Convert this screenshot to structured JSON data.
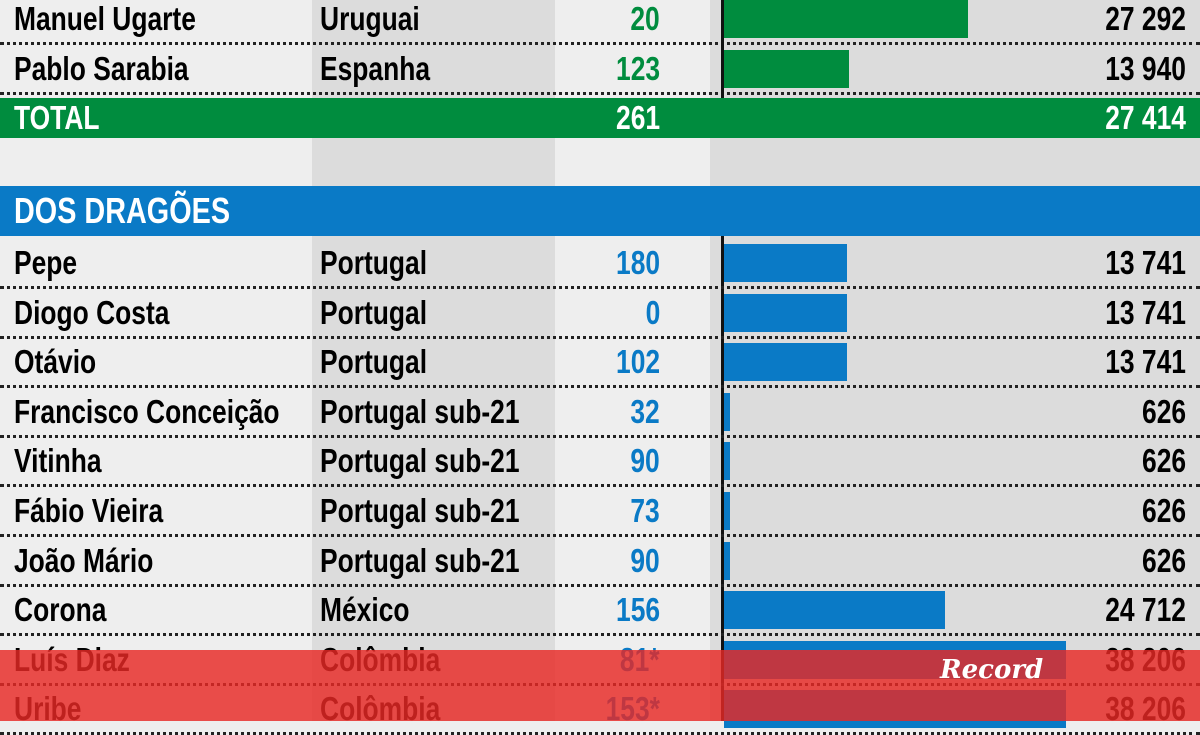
{
  "colors": {
    "green": "#008c3e",
    "blue": "#0a7ac6",
    "overlay": "#e82824"
  },
  "chart_data": {
    "type": "table",
    "max_value": 38206,
    "groups": [
      {
        "name": "",
        "color": "#008c3e",
        "rows": [
          {
            "name": "Manuel Ugarte",
            "country": "Uruguai",
            "games": "20",
            "value": 27292,
            "value_label": "27 292"
          },
          {
            "name": "Pablo Sarabia",
            "country": "Espanha",
            "games": "123",
            "value": 13940,
            "value_label": "13 940"
          }
        ],
        "total": {
          "label": "TOTAL",
          "games": "261",
          "value_label": "27 414"
        }
      },
      {
        "name": "DOS DRAGÕES",
        "color": "#0a7ac6",
        "rows": [
          {
            "name": "Pepe",
            "country": "Portugal",
            "games": "180",
            "value": 13741,
            "value_label": "13 741"
          },
          {
            "name": "Diogo Costa",
            "country": "Portugal",
            "games": "0",
            "value": 13741,
            "value_label": "13 741"
          },
          {
            "name": "Otávio",
            "country": "Portugal",
            "games": "102",
            "value": 13741,
            "value_label": "13 741"
          },
          {
            "name": "Francisco Conceição",
            "country": "Portugal sub-21",
            "games": "32",
            "value": 626,
            "value_label": "626"
          },
          {
            "name": "Vitinha",
            "country": "Portugal sub-21",
            "games": "90",
            "value": 626,
            "value_label": "626"
          },
          {
            "name": "Fábio Vieira",
            "country": "Portugal sub-21",
            "games": "73",
            "value": 626,
            "value_label": "626"
          },
          {
            "name": "João Mário",
            "country": "Portugal sub-21",
            "games": "90",
            "value": 626,
            "value_label": "626"
          },
          {
            "name": "Corona",
            "country": "México",
            "games": "156",
            "value": 24712,
            "value_label": "24 712"
          },
          {
            "name": "Luís Diaz",
            "country": "Colômbia",
            "games": "81*",
            "value": 38206,
            "value_label": "38 206"
          },
          {
            "name": "Uribe",
            "country": "Colômbia",
            "games": "153*",
            "value": 38206,
            "value_label": "38 206"
          }
        ]
      }
    ]
  },
  "logo": "Record"
}
